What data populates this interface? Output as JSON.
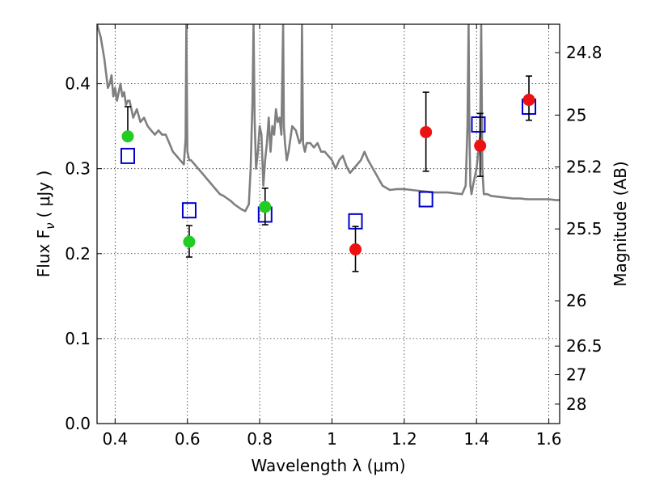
{
  "chart_data": {
    "type": "scatter",
    "xlabel": "Wavelength  λ (μm)",
    "ylabel": "Flux  F",
    "ylabel_sub": "ν",
    "ylabel_unit": "( μJy )",
    "y2label": "Magnitude (AB)",
    "xlim": [
      0.35,
      1.63
    ],
    "ylim": [
      0.0,
      0.47
    ],
    "grid": true,
    "x_ticks": [
      {
        "value": 0.4,
        "label": "0.4"
      },
      {
        "value": 0.6,
        "label": "0.6"
      },
      {
        "value": 0.8,
        "label": "0.8"
      },
      {
        "value": 1.0,
        "label": "1"
      },
      {
        "value": 1.2,
        "label": "1.2"
      },
      {
        "value": 1.4,
        "label": "1.4"
      },
      {
        "value": 1.6,
        "label": "1.6"
      }
    ],
    "y_ticks": [
      {
        "value": 0.0,
        "label": "0.0"
      },
      {
        "value": 0.1,
        "label": "0.1"
      },
      {
        "value": 0.2,
        "label": "0.2"
      },
      {
        "value": 0.3,
        "label": "0.3"
      },
      {
        "value": 0.4,
        "label": "0.4"
      }
    ],
    "mag_ticks": [
      {
        "value": 24.8,
        "label": "24.8"
      },
      {
        "value": 25.0,
        "label": "25"
      },
      {
        "value": 25.2,
        "label": "25.2"
      },
      {
        "value": 25.5,
        "label": "25.5"
      },
      {
        "value": 26.0,
        "label": "26"
      },
      {
        "value": 26.5,
        "label": "26.5"
      },
      {
        "value": 27.0,
        "label": "27"
      },
      {
        "value": 28.0,
        "label": "28"
      }
    ],
    "series": [
      {
        "kind": "line",
        "color": "#7f7f7f",
        "x": [
          0.35,
          0.36,
          0.37,
          0.38,
          0.385,
          0.39,
          0.395,
          0.4,
          0.405,
          0.41,
          0.415,
          0.42,
          0.425,
          0.43,
          0.435,
          0.44,
          0.445,
          0.45,
          0.46,
          0.47,
          0.48,
          0.49,
          0.5,
          0.51,
          0.52,
          0.53,
          0.54,
          0.55,
          0.56,
          0.57,
          0.58,
          0.59,
          0.595,
          0.597,
          0.6,
          0.605,
          0.61,
          0.62,
          0.63,
          0.64,
          0.65,
          0.66,
          0.67,
          0.68,
          0.69,
          0.7,
          0.71,
          0.72,
          0.73,
          0.74,
          0.75,
          0.76,
          0.77,
          0.775,
          0.78,
          0.783,
          0.786,
          0.79,
          0.795,
          0.8,
          0.805,
          0.81,
          0.815,
          0.82,
          0.825,
          0.83,
          0.835,
          0.84,
          0.845,
          0.85,
          0.855,
          0.86,
          0.865,
          0.867,
          0.87,
          0.875,
          0.88,
          0.89,
          0.9,
          0.91,
          0.915,
          0.917,
          0.92,
          0.925,
          0.93,
          0.94,
          0.95,
          0.96,
          0.97,
          0.98,
          0.99,
          1.0,
          1.01,
          1.02,
          1.03,
          1.04,
          1.05,
          1.06,
          1.07,
          1.08,
          1.09,
          1.1,
          1.12,
          1.14,
          1.16,
          1.18,
          1.2,
          1.22,
          1.24,
          1.26,
          1.28,
          1.3,
          1.32,
          1.34,
          1.36,
          1.37,
          1.375,
          1.378,
          1.38,
          1.383,
          1.386,
          1.39,
          1.4,
          1.41,
          1.413,
          1.416,
          1.42,
          1.43,
          1.44,
          1.46,
          1.48,
          1.5,
          1.52,
          1.54,
          1.56,
          1.58,
          1.6,
          1.62,
          1.63
        ],
        "y": [
          0.47,
          0.455,
          0.43,
          0.395,
          0.4,
          0.41,
          0.385,
          0.395,
          0.38,
          0.39,
          0.4,
          0.385,
          0.39,
          0.375,
          0.38,
          0.38,
          0.37,
          0.36,
          0.37,
          0.355,
          0.36,
          0.35,
          0.345,
          0.34,
          0.345,
          0.34,
          0.34,
          0.33,
          0.32,
          0.315,
          0.31,
          0.305,
          0.335,
          0.47,
          0.32,
          0.31,
          0.31,
          0.305,
          0.3,
          0.295,
          0.29,
          0.285,
          0.28,
          0.275,
          0.27,
          0.268,
          0.265,
          0.262,
          0.258,
          0.255,
          0.252,
          0.25,
          0.258,
          0.3,
          0.38,
          0.47,
          0.36,
          0.3,
          0.32,
          0.35,
          0.34,
          0.28,
          0.31,
          0.33,
          0.36,
          0.32,
          0.35,
          0.34,
          0.37,
          0.355,
          0.36,
          0.34,
          0.47,
          0.35,
          0.33,
          0.31,
          0.32,
          0.35,
          0.345,
          0.33,
          0.335,
          0.47,
          0.33,
          0.32,
          0.33,
          0.33,
          0.325,
          0.33,
          0.32,
          0.32,
          0.315,
          0.31,
          0.3,
          0.31,
          0.315,
          0.303,
          0.295,
          0.3,
          0.305,
          0.31,
          0.32,
          0.31,
          0.295,
          0.28,
          0.275,
          0.276,
          0.276,
          0.275,
          0.274,
          0.273,
          0.272,
          0.272,
          0.272,
          0.271,
          0.27,
          0.28,
          0.35,
          0.47,
          0.35,
          0.28,
          0.27,
          0.28,
          0.3,
          0.34,
          0.47,
          0.3,
          0.27,
          0.27,
          0.268,
          0.267,
          0.266,
          0.265,
          0.265,
          0.264,
          0.264,
          0.264,
          0.264,
          0.263,
          0.263
        ]
      },
      {
        "kind": "markers",
        "marker": "square-open",
        "color": "#0000cc",
        "x": [
          0.435,
          0.605,
          0.815,
          1.065,
          1.26,
          1.405,
          1.545
        ],
        "y": [
          0.315,
          0.251,
          0.246,
          0.238,
          0.264,
          0.352,
          0.373
        ]
      },
      {
        "kind": "markers",
        "marker": "circle",
        "color": "#22cc22",
        "errorbars": true,
        "x": [
          0.435,
          0.605,
          0.815
        ],
        "y": [
          0.338,
          0.214,
          0.255
        ],
        "yerr_low": [
          0.338,
          0.196,
          0.234
        ],
        "yerr_high": [
          0.373,
          0.233,
          0.277
        ]
      },
      {
        "kind": "markers",
        "marker": "circle",
        "color": "#ee1111",
        "errorbars": true,
        "x": [
          1.065,
          1.26,
          1.41,
          1.545
        ],
        "y": [
          0.205,
          0.343,
          0.327,
          0.381
        ],
        "yerr_low": [
          0.179,
          0.297,
          0.291,
          0.357
        ],
        "yerr_high": [
          0.232,
          0.39,
          0.365,
          0.409
        ]
      }
    ]
  }
}
